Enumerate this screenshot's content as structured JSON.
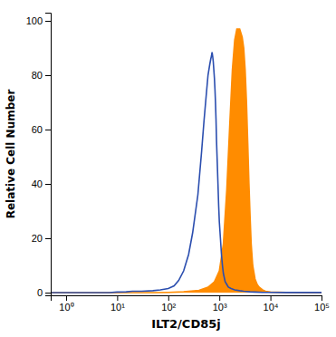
{
  "chart_data": {
    "type": "line",
    "xlabel": "ILT2/CD85j",
    "ylabel": "Relative Cell Number",
    "log": "x",
    "xlim": [
      0.5,
      100000
    ],
    "ylim": [
      -1,
      103
    ],
    "xticks": [
      {
        "value": 1,
        "label": "10⁰"
      },
      {
        "value": 10,
        "label": "10¹"
      },
      {
        "value": 100,
        "label": "10²"
      },
      {
        "value": 1000,
        "label": "10³"
      },
      {
        "value": 10000,
        "label": "10⁴"
      },
      {
        "value": 100000,
        "label": "10⁵"
      }
    ],
    "yticks": [
      0,
      20,
      40,
      60,
      80,
      100
    ],
    "grid": false,
    "series": [
      {
        "type": "area",
        "color": "#FF8C00",
        "x": [
          0.5,
          1,
          5,
          10,
          20,
          50,
          100,
          200,
          400,
          600,
          800,
          1000,
          1200,
          1400,
          1600,
          1800,
          2000,
          2200,
          2500,
          2800,
          3000,
          3200,
          3400,
          3600,
          3800,
          4000,
          4200,
          4500,
          5000,
          5500,
          6000,
          7000,
          8000,
          10000,
          20000,
          50000,
          100000
        ],
        "values": [
          0,
          0,
          0,
          0,
          0,
          0,
          0.1,
          0.3,
          0.8,
          2,
          4,
          8,
          18,
          38,
          62,
          82,
          93,
          97,
          97,
          94,
          90,
          82,
          70,
          55,
          40,
          28,
          18,
          10,
          5,
          3,
          2,
          1,
          0.5,
          0.2,
          0.1,
          0.05,
          0.05
        ]
      },
      {
        "type": "line",
        "color": "#2B4EAF",
        "x": [
          0.5,
          0.6,
          0.8,
          1,
          2,
          3,
          5,
          7,
          10,
          15,
          20,
          30,
          50,
          70,
          100,
          130,
          160,
          200,
          250,
          300,
          380,
          450,
          500,
          550,
          600,
          650,
          680,
          700,
          720,
          740,
          760,
          780,
          800,
          820,
          840,
          860,
          880,
          910,
          940,
          970,
          1000,
          1050,
          1100,
          1150,
          1200,
          1300,
          1400,
          1500,
          1700,
          2000,
          2500,
          3000,
          4000,
          5000,
          7000,
          10000,
          20000,
          50000,
          100000
        ],
        "values": [
          0,
          0,
          0,
          0,
          0,
          0,
          0,
          0,
          0.2,
          0.3,
          0.5,
          0.5,
          0.7,
          1.0,
          1.5,
          2.5,
          4.5,
          8,
          14,
          22,
          36,
          52,
          63,
          72,
          80,
          84,
          86,
          87,
          88.5,
          87,
          85,
          82,
          79,
          75,
          70,
          64,
          56,
          48,
          40,
          32,
          26,
          20,
          14,
          10,
          7,
          4,
          3,
          2,
          1.5,
          1,
          0.7,
          0.5,
          0.3,
          0.2,
          0.1,
          0.1,
          0.05,
          0.05,
          0.05
        ]
      }
    ]
  }
}
